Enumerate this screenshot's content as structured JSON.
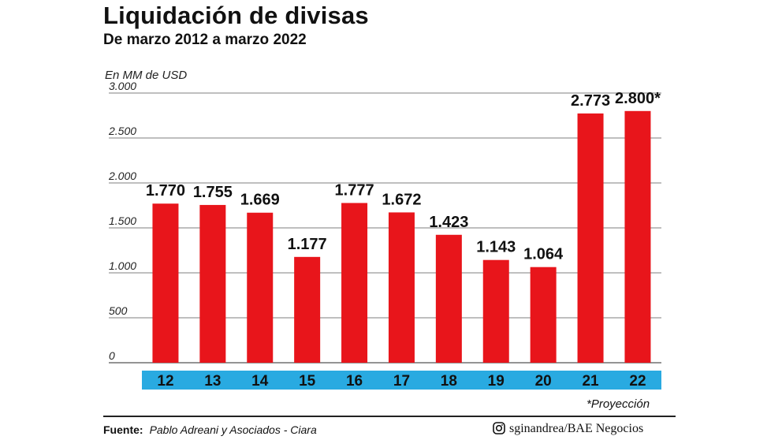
{
  "title": "Liquidación de divisas",
  "subtitle": "De marzo 2012 a marzo 2022",
  "unit_label": "En MM de USD",
  "footnote": "*Proyección",
  "source": {
    "label": "Fuente:",
    "text": "Pablo Adreani y Asociados - Ciara"
  },
  "credit": {
    "icon": "instagram-icon",
    "text": "sginandrea/BAE Negocios"
  },
  "colors": {
    "bar": "#e8151b",
    "axis_band": "#29aae1",
    "axis_text": "#111111",
    "grid": "#555555"
  },
  "chart_data": {
    "type": "bar",
    "title": "Liquidación de divisas",
    "subtitle": "De marzo 2012 a marzo 2022",
    "ylabel": "En MM de USD",
    "xlabel": "",
    "categories": [
      "12",
      "13",
      "14",
      "15",
      "16",
      "17",
      "18",
      "19",
      "20",
      "21",
      "22"
    ],
    "values": [
      1770,
      1755,
      1669,
      1177,
      1777,
      1672,
      1423,
      1143,
      1064,
      2773,
      2800
    ],
    "value_labels": [
      "1.770",
      "1.755",
      "1.669",
      "1.177",
      "1.777",
      "1.672",
      "1.423",
      "1.143",
      "1.064",
      "2.773",
      "2.800*"
    ],
    "ylim": [
      0,
      3000
    ],
    "yticks": [
      0,
      500,
      1000,
      1500,
      2000,
      2500,
      3000
    ],
    "ytick_labels": [
      "0",
      "500",
      "1.000",
      "1.500",
      "2.000",
      "2.500",
      "3.000"
    ],
    "grid": true,
    "legend": "none"
  }
}
